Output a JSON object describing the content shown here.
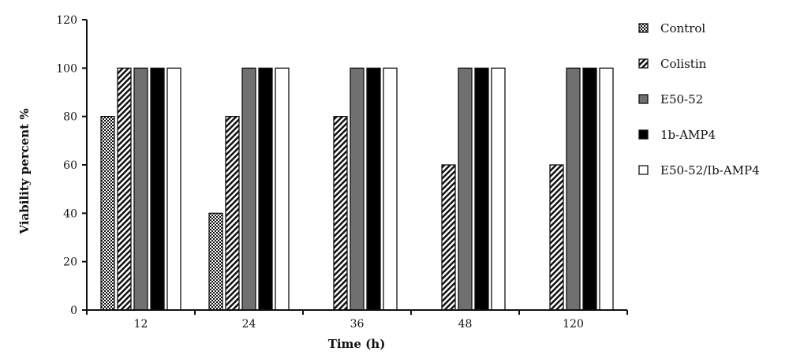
{
  "chart_data": {
    "type": "bar",
    "title": "",
    "xlabel": "Time (h)",
    "ylabel": "Viability percent %",
    "ylim": [
      0,
      120
    ],
    "yticks": [
      "0",
      "20",
      "40",
      "60",
      "80",
      "100",
      "120"
    ],
    "categories": [
      "12",
      "24",
      "36",
      "48",
      "120"
    ],
    "legend_position": "right",
    "grid": false,
    "series": [
      {
        "name": "Control",
        "pattern": "checker",
        "color": "#000000",
        "values": [
          80,
          40,
          0,
          0,
          0
        ]
      },
      {
        "name": "Colistin",
        "pattern": "diagonal",
        "color": "#000000",
        "values": [
          100,
          80,
          80,
          60,
          60
        ]
      },
      {
        "name": "E50-52",
        "pattern": "solid",
        "color": "#707070",
        "values": [
          100,
          100,
          100,
          100,
          100
        ]
      },
      {
        "name": "1b-AMP4",
        "pattern": "solid",
        "color": "#000000",
        "values": [
          100,
          100,
          100,
          100,
          100
        ]
      },
      {
        "name": "E50-52/Ib-AMP4",
        "pattern": "hollow",
        "color": "#ffffff",
        "values": [
          100,
          100,
          100,
          100,
          100
        ]
      }
    ]
  }
}
